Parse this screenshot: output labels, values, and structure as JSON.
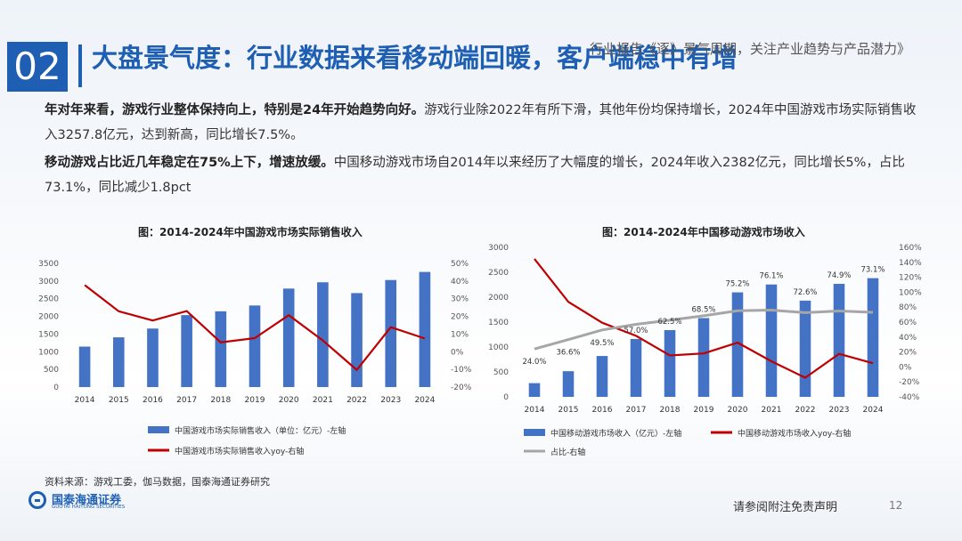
{
  "header": {
    "section_number": "02",
    "title": "大盘景气度：行业数据来看移动端回暖，客户端稳中有增",
    "report_name": "行业报告《逐》景气周期，关注产业趋势与产品潜力》"
  },
  "paragraphs": [
    {
      "bold": "年对年来看，游戏行业整体保持向上，特别是24年开始趋势向好。",
      "text": "游戏行业除2022年有所下滑，其他年份均保持增长，2024年中国游戏市场实际销售收入3257.8亿元，达到新高，同比增长7.5%。"
    },
    {
      "bold": "移动游戏占比近几年稳定在75%上下，增速放缓。",
      "text": "中国移动游戏市场自2014年以来经历了大幅度的增长，2024年收入2382亿元，同比增长5%，占比73.1%，同比减少1.8pct"
    }
  ],
  "chart_data": [
    {
      "type": "bar",
      "title": "图：2014-2024年中国游戏市场实际销售收入",
      "categories": [
        "2014",
        "2015",
        "2016",
        "2017",
        "2018",
        "2019",
        "2020",
        "2021",
        "2022",
        "2023",
        "2024"
      ],
      "series": [
        {
          "name": "中国游戏市场实际销售收入（单位：亿元）-左轴",
          "type": "bar",
          "axis": "left",
          "color": "#4472c4",
          "values": [
            1145,
            1407,
            1656,
            2036,
            2144,
            2308,
            2787,
            2965,
            2659,
            3029,
            3258
          ]
        },
        {
          "name": "中国游戏市场实际销售收入yoy-右轴",
          "type": "line",
          "axis": "right",
          "color": "#c00000",
          "values": [
            37.7,
            22.9,
            17.7,
            23.0,
            5.3,
            7.7,
            20.7,
            6.4,
            -10.3,
            13.9,
            7.5
          ]
        }
      ],
      "left_axis": {
        "ticks": [
          "0",
          "500",
          "1000",
          "1500",
          "2000",
          "2500",
          "3000",
          "3500"
        ],
        "range": [
          0,
          3500
        ]
      },
      "right_axis": {
        "ticks": [
          "-20%",
          "-10%",
          "0%",
          "10%",
          "20%",
          "30%",
          "40%",
          "50%"
        ],
        "range": [
          -20,
          50
        ]
      },
      "legend": "bottom"
    },
    {
      "type": "bar",
      "title": "图：2014-2024年中国移动游戏市场收入",
      "categories": [
        "2014",
        "2015",
        "2016",
        "2017",
        "2018",
        "2019",
        "2020",
        "2021",
        "2022",
        "2023",
        "2024"
      ],
      "series": [
        {
          "name": "中国移动游戏市场收入（亿元）-左轴",
          "type": "bar",
          "axis": "left",
          "color": "#4472c4",
          "values": [
            275,
            515,
            820,
            1161,
            1339,
            1581,
            2097,
            2255,
            1931,
            2268,
            2382
          ]
        },
        {
          "name": "中国移动游戏市场收入yoy-右轴",
          "type": "line",
          "axis": "right",
          "color": "#c00000",
          "values": [
            144.6,
            87.2,
            59.2,
            41.7,
            15.4,
            18.1,
            32.6,
            7.6,
            -14.4,
            17.5,
            5.0
          ]
        },
        {
          "name": "占比-右轴",
          "type": "line",
          "axis": "right",
          "color": "#a6a6a6",
          "values": [
            24.0,
            36.6,
            49.5,
            57.0,
            62.5,
            68.5,
            75.2,
            76.1,
            72.6,
            74.9,
            73.1
          ],
          "labels": [
            "24.0%",
            "36.6%",
            "49.5%",
            "57.0%",
            "62.5%",
            "68.5%",
            "75.2%",
            "76.1%",
            "72.6%",
            "74.9%",
            "73.1%"
          ]
        }
      ],
      "left_axis": {
        "ticks": [
          "0",
          "500",
          "1000",
          "1500",
          "2000",
          "2500",
          "3000"
        ],
        "range": [
          0,
          3000
        ]
      },
      "right_axis": {
        "ticks": [
          "-40%",
          "-20%",
          "0%",
          "20%",
          "40%",
          "60%",
          "80%",
          "100%",
          "120%",
          "140%",
          "160%"
        ],
        "range": [
          -40,
          160
        ]
      },
      "legend": "bottom"
    }
  ],
  "footer": {
    "source": "资料来源：游戏工委，伽马数据，国泰海通证券研究",
    "logo_cn": "国泰海通证券",
    "logo_en": "GUOTAI HAITONG SECURITIES",
    "disclaimer": "请参阅附注免责声明",
    "page_number": "12"
  }
}
